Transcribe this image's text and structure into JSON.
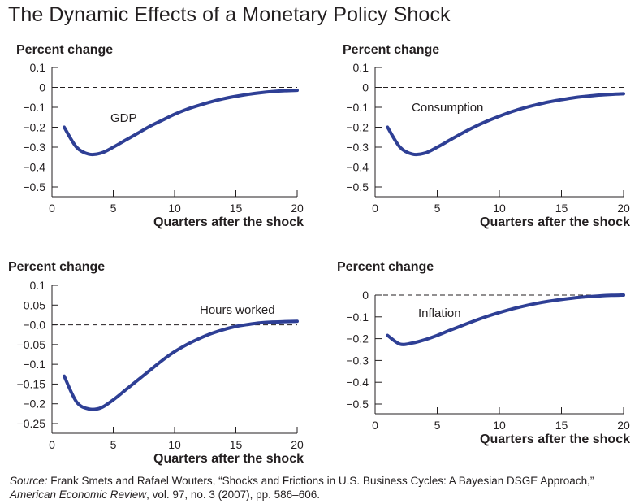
{
  "title": "The Dynamic Effects of a Monetary Policy Shock",
  "source": {
    "lead": "Source:",
    "authors": " Frank Smets and Rafael Wouters, “Shocks and Frictions in U.S. Business Cycles: A Bayesian DSGE Approach,”",
    "journal": "American Economic Review",
    "details": ", vol. 97, no. 3 (2007), pp. 586–606."
  },
  "colors": {
    "line": "#2e3f95",
    "axis": "#231f20"
  },
  "chart_data": [
    {
      "type": "line",
      "ylabel": "Percent change",
      "xlabel": "Quarters after the shock",
      "annotation": "GDP",
      "xlim": [
        0,
        20
      ],
      "ylim": [
        -0.5,
        0.1
      ],
      "xticks": [
        0,
        5,
        10,
        15,
        20
      ],
      "xtick_labels": [
        "0",
        "5",
        "10",
        "15",
        "20"
      ],
      "yticks": [
        0.1,
        0,
        -0.1,
        -0.2,
        -0.3,
        -0.4,
        -0.5
      ],
      "ytick_labels": [
        "0.1",
        "0",
        "−0.1",
        "−0.2",
        "−0.3",
        "−0.4",
        "−0.5"
      ],
      "zero_line": "dashed",
      "x": [
        1,
        2,
        3,
        4,
        5,
        6,
        7,
        8,
        9,
        10,
        11,
        12,
        13,
        14,
        15,
        16,
        17,
        18,
        19,
        20
      ],
      "values": [
        -0.2,
        -0.3,
        -0.335,
        -0.33,
        -0.3,
        -0.265,
        -0.23,
        -0.195,
        -0.165,
        -0.135,
        -0.11,
        -0.09,
        -0.072,
        -0.057,
        -0.045,
        -0.035,
        -0.027,
        -0.021,
        -0.017,
        -0.015
      ]
    },
    {
      "type": "line",
      "ylabel": "Percent change",
      "xlabel": "Quarters after the shock",
      "annotation": "Consumption",
      "xlim": [
        0,
        20
      ],
      "ylim": [
        -0.5,
        0.1
      ],
      "xticks": [
        0,
        5,
        10,
        15,
        20
      ],
      "xtick_labels": [
        "0",
        "5",
        "10",
        "15",
        "20"
      ],
      "yticks": [
        0.1,
        0,
        -0.1,
        -0.2,
        -0.3,
        -0.4,
        -0.5
      ],
      "ytick_labels": [
        "0.1",
        "0",
        "−0.1",
        "−0.2",
        "−0.3",
        "−0.4",
        "−0.5"
      ],
      "zero_line": "dashed",
      "x": [
        1,
        2,
        3,
        4,
        5,
        6,
        7,
        8,
        9,
        10,
        11,
        12,
        13,
        14,
        15,
        16,
        17,
        18,
        19,
        20
      ],
      "values": [
        -0.2,
        -0.3,
        -0.335,
        -0.33,
        -0.3,
        -0.265,
        -0.23,
        -0.198,
        -0.17,
        -0.145,
        -0.122,
        -0.103,
        -0.087,
        -0.073,
        -0.062,
        -0.052,
        -0.045,
        -0.039,
        -0.035,
        -0.032
      ]
    },
    {
      "type": "line",
      "ylabel": "Percent change",
      "xlabel": "Quarters after the shock",
      "annotation": "Hours worked",
      "xlim": [
        0,
        20
      ],
      "ylim": [
        -0.25,
        0.1
      ],
      "xticks": [
        0,
        5,
        10,
        15,
        20
      ],
      "xtick_labels": [
        "0",
        "5",
        "10",
        "15",
        "20"
      ],
      "yticks": [
        0.1,
        0.05,
        0,
        -0.05,
        -0.1,
        -0.15,
        -0.2,
        -0.25
      ],
      "ytick_labels": [
        "0.1",
        "0.05",
        "−0.0",
        "−0.05",
        "−0.1",
        "−0.15",
        "−0.2",
        "−0.25"
      ],
      "zero_line": "dashed",
      "x": [
        1,
        2,
        3,
        4,
        5,
        6,
        7,
        8,
        9,
        10,
        11,
        12,
        13,
        14,
        15,
        16,
        17,
        18,
        19,
        20
      ],
      "values": [
        -0.13,
        -0.195,
        -0.213,
        -0.21,
        -0.19,
        -0.165,
        -0.14,
        -0.115,
        -0.09,
        -0.068,
        -0.05,
        -0.035,
        -0.022,
        -0.012,
        -0.004,
        0.001,
        0.005,
        0.007,
        0.008,
        0.009
      ]
    },
    {
      "type": "line",
      "ylabel": "Percent change",
      "xlabel": "Quarters after the shock",
      "annotation": "Inflation",
      "xlim": [
        0,
        20
      ],
      "ylim": [
        -0.5,
        0
      ],
      "xticks": [
        0,
        5,
        10,
        15,
        20
      ],
      "xtick_labels": [
        "0",
        "5",
        "10",
        "15",
        "20"
      ],
      "yticks": [
        0,
        -0.1,
        -0.2,
        -0.3,
        -0.4,
        -0.5
      ],
      "ytick_labels": [
        "0",
        "−0.1",
        "−0.2",
        "−0.3",
        "−0.4",
        "−0.5"
      ],
      "zero_line": "dashed",
      "x": [
        1,
        2,
        3,
        4,
        5,
        6,
        7,
        8,
        9,
        10,
        11,
        12,
        13,
        14,
        15,
        16,
        17,
        18,
        19,
        20
      ],
      "values": [
        -0.185,
        -0.225,
        -0.22,
        -0.205,
        -0.185,
        -0.162,
        -0.14,
        -0.118,
        -0.098,
        -0.08,
        -0.064,
        -0.05,
        -0.038,
        -0.028,
        -0.02,
        -0.013,
        -0.008,
        -0.004,
        -0.001,
        0.0
      ]
    }
  ]
}
